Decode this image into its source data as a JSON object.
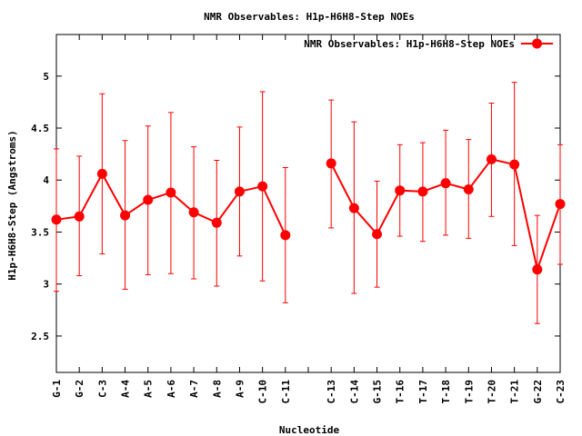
{
  "chart_data": {
    "type": "line",
    "title": "NMR Observables: H1p-H6H8-Step NOEs",
    "xlabel": "Nucleotide",
    "ylabel": "H1p-H6H8-Step (Angstroms)",
    "ylim": [
      2.15,
      5.4
    ],
    "yticks": [
      "2.5",
      "3",
      "3.5",
      "4",
      "4.5",
      "5"
    ],
    "grid": false,
    "legend_position": "top-right",
    "series": [
      {
        "name": "NMR Observables: H1p-H6H8-Step NOEs",
        "color": "#ff0000",
        "segments": [
          {
            "x": [
              "G-1",
              "G-2",
              "C-3",
              "A-4",
              "A-5",
              "A-6",
              "A-7",
              "A-8",
              "A-9",
              "C-10",
              "C-11"
            ],
            "values": [
              3.62,
              3.65,
              4.06,
              3.66,
              3.81,
              3.88,
              3.69,
              3.59,
              3.89,
              3.94,
              3.47
            ],
            "err_low": [
              2.93,
              3.08,
              3.29,
              2.95,
              3.09,
              3.1,
              3.05,
              2.98,
              3.27,
              3.03,
              2.82
            ],
            "err_high": [
              4.3,
              4.23,
              4.83,
              4.38,
              4.52,
              4.65,
              4.32,
              4.19,
              4.51,
              4.85,
              4.12
            ]
          },
          {
            "x": [
              "C-13",
              "C-14",
              "G-15",
              "T-16",
              "T-17",
              "T-18",
              "T-19",
              "T-20",
              "T-21",
              "G-22",
              "C-23"
            ],
            "values": [
              4.16,
              3.73,
              3.48,
              3.9,
              3.89,
              3.97,
              3.91,
              4.2,
              4.15,
              3.14,
              3.77
            ],
            "err_low": [
              3.54,
              2.91,
              2.97,
              3.46,
              3.41,
              3.47,
              3.44,
              3.65,
              3.37,
              2.62,
              3.19
            ],
            "err_high": [
              4.77,
              4.56,
              3.99,
              4.34,
              4.36,
              4.48,
              4.39,
              4.74,
              4.94,
              3.66,
              4.34
            ]
          }
        ]
      }
    ]
  }
}
